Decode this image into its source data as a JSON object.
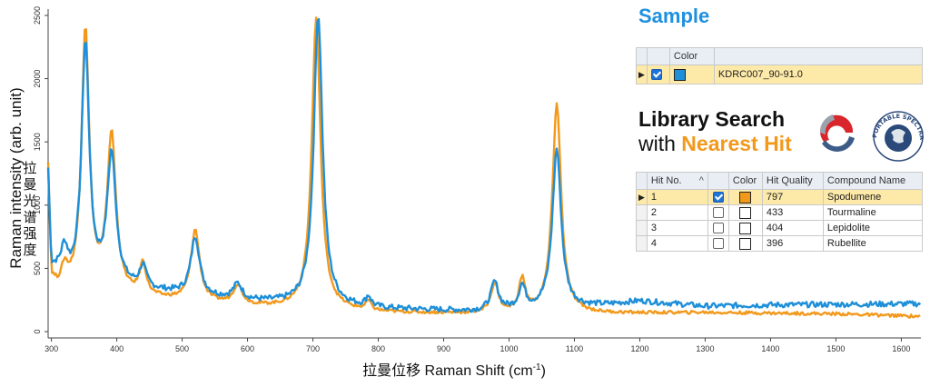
{
  "chart_data": {
    "type": "line",
    "xlabel": "拉曼位移 Raman Shift (cm-1)",
    "xlabel_main": "拉曼位移 Raman Shift (cm",
    "xlabel_sup": "-1",
    "xlabel_end": ")",
    "ylabel": "Raman intensity (arb. unit)",
    "ylabel_cn": [
      "拉",
      "曼",
      "光",
      "谱",
      "强",
      "度"
    ],
    "xlim": [
      295,
      1630
    ],
    "ylim": [
      -50,
      2550
    ],
    "x_ticks": [
      300,
      400,
      500,
      600,
      700,
      800,
      900,
      1000,
      1100,
      1200,
      1300,
      1400,
      1500,
      1600
    ],
    "y_ticks": [
      0,
      500,
      1000,
      1500,
      2000,
      2500
    ],
    "grid": false,
    "series": [
      {
        "name": "KDRC007_90-91.0",
        "color": "#1e8fd8",
        "baseline": [
          [
            295,
            1250
          ],
          [
            300,
            500
          ],
          [
            310,
            470
          ],
          [
            330,
            390
          ],
          [
            600,
            240
          ],
          [
            800,
            180
          ],
          [
            950,
            160
          ],
          [
            1100,
            190
          ],
          [
            1150,
            210
          ],
          [
            1200,
            240
          ],
          [
            1300,
            200
          ],
          [
            1400,
            210
          ],
          [
            1630,
            220
          ]
        ],
        "peaks": [
          [
            320,
            200,
            6
          ],
          [
            352,
            1890,
            7
          ],
          [
            392,
            1030,
            8
          ],
          [
            440,
            170,
            6
          ],
          [
            520,
            460,
            8
          ],
          [
            585,
            120,
            8
          ],
          [
            708,
            2300,
            8
          ],
          [
            785,
            80,
            5
          ],
          [
            978,
            220,
            7
          ],
          [
            1020,
            180,
            6
          ],
          [
            1073,
            1260,
            8
          ]
        ],
        "noise": 22
      },
      {
        "name": "Spodumene",
        "color": "#f2991c",
        "baseline": [
          [
            295,
            1300
          ],
          [
            300,
            420
          ],
          [
            310,
            330
          ],
          [
            350,
            300
          ],
          [
            600,
            200
          ],
          [
            800,
            150
          ],
          [
            950,
            140
          ],
          [
            1100,
            140
          ],
          [
            1300,
            150
          ],
          [
            1500,
            140
          ],
          [
            1630,
            120
          ]
        ],
        "peaks": [
          [
            320,
            150,
            6
          ],
          [
            352,
            2080,
            7
          ],
          [
            392,
            1250,
            8
          ],
          [
            440,
            250,
            6
          ],
          [
            520,
            560,
            8
          ],
          [
            585,
            150,
            8
          ],
          [
            705,
            2300,
            8
          ],
          [
            785,
            70,
            5
          ],
          [
            978,
            230,
            7
          ],
          [
            1020,
            260,
            6
          ],
          [
            1073,
            1660,
            8
          ]
        ],
        "noise": 12
      }
    ]
  },
  "sample": {
    "title": "Sample",
    "header_color": "Color",
    "row": {
      "checked": true,
      "color": "#1e8fd8",
      "name": "KDRC007_90-91.0"
    }
  },
  "library": {
    "line1": "Library Search",
    "with": "with ",
    "nearest": "Nearest Hit"
  },
  "logo": {
    "text": "PORTABLE SPECTRAL SERVICES"
  },
  "results": {
    "headers": {
      "hit_no": "Hit No.",
      "sort": "^",
      "color": "Color",
      "quality": "Hit Quality",
      "name": "Compound Name"
    },
    "rows": [
      {
        "hit": "1",
        "checked": true,
        "color": "#f2991c",
        "quality": "797",
        "name": "Spodumene"
      },
      {
        "hit": "2",
        "checked": false,
        "color": "#ffffff",
        "quality": "433",
        "name": "Tourmaline"
      },
      {
        "hit": "3",
        "checked": false,
        "color": "#ffffff",
        "quality": "404",
        "name": "Lepidolite"
      },
      {
        "hit": "4",
        "checked": false,
        "color": "#ffffff",
        "quality": "396",
        "name": "Rubellite"
      }
    ]
  }
}
